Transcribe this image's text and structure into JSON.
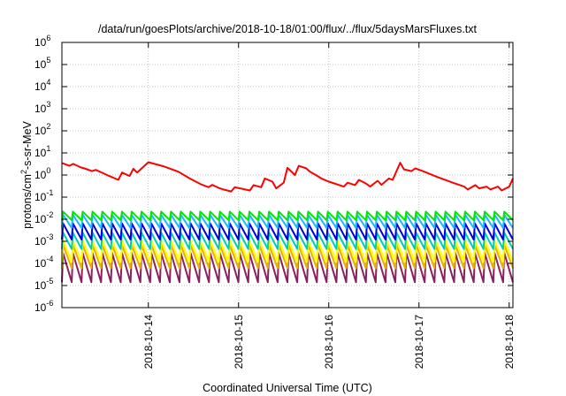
{
  "chart_data": {
    "type": "line",
    "title": "/data/run/goesPlots/archive/2018-10-18/01:00/flux/../flux/5daysMarsFluxes.txt",
    "xlabel": "Coordinated Universal Time (UTC)",
    "ylabel": "protons/cm2-s-sr-MeV",
    "ylabel_parts": {
      "pre": "protons/cm",
      "sup": "2",
      "post": "-s-sr-MeV"
    },
    "y_scale": "log",
    "ylim": [
      1e-06,
      1000000.0
    ],
    "xlim": [
      "2018-10-13T01:00",
      "2018-10-18T01:00"
    ],
    "grid": true,
    "legend": "none",
    "y_ticks": [
      {
        "value": 1e-06,
        "base": "10",
        "exp": "-6"
      },
      {
        "value": 1e-05,
        "base": "10",
        "exp": "-5"
      },
      {
        "value": 0.0001,
        "base": "10",
        "exp": "-4"
      },
      {
        "value": 0.001,
        "base": "10",
        "exp": "-3"
      },
      {
        "value": 0.01,
        "base": "10",
        "exp": "-2"
      },
      {
        "value": 0.1,
        "base": "10",
        "exp": "-1"
      },
      {
        "value": 1,
        "base": "10",
        "exp": "0"
      },
      {
        "value": 10,
        "base": "10",
        "exp": "1"
      },
      {
        "value": 100,
        "base": "10",
        "exp": "2"
      },
      {
        "value": 1000,
        "base": "10",
        "exp": "3"
      },
      {
        "value": 10000,
        "base": "10",
        "exp": "4"
      },
      {
        "value": 100000,
        "base": "10",
        "exp": "5"
      },
      {
        "value": 1000000,
        "base": "10",
        "exp": "6"
      }
    ],
    "x_ticks": [
      {
        "value": "2018-10-14T00:00",
        "label": "2018-10-14"
      },
      {
        "value": "2018-10-15T00:00",
        "label": "2018-10-15"
      },
      {
        "value": "2018-10-16T00:00",
        "label": "2018-10-16"
      },
      {
        "value": "2018-10-17T00:00",
        "label": "2018-10-17"
      },
      {
        "value": "2018-10-18T00:00",
        "label": "2018-10-18"
      }
    ],
    "series": [
      {
        "color": "#ff0000",
        "x": [
          "2018-10-13T01:00",
          "2018-10-13T03:00",
          "2018-10-13T04:00",
          "2018-10-13T06:00",
          "2018-10-13T07:00",
          "2018-10-13T09:00",
          "2018-10-13T10:00",
          "2018-10-13T12:00",
          "2018-10-13T13:00",
          "2018-10-13T16:00",
          "2018-10-13T17:00",
          "2018-10-13T19:00",
          "2018-10-13T20:00",
          "2018-10-13T21:00",
          "2018-10-14T00:00",
          "2018-10-14T04:00",
          "2018-10-14T08:00",
          "2018-10-14T11:00",
          "2018-10-14T14:00",
          "2018-10-14T16:00",
          "2018-10-14T17:00",
          "2018-10-14T19:00",
          "2018-10-14T20:00",
          "2018-10-14T22:00",
          "2018-10-14T23:00",
          "2018-10-15T03:00",
          "2018-10-15T04:00",
          "2018-10-15T06:00",
          "2018-10-15T07:00",
          "2018-10-15T09:00",
          "2018-10-15T10:00",
          "2018-10-15T12:00",
          "2018-10-15T13:00",
          "2018-10-15T15:00",
          "2018-10-15T16:00",
          "2018-10-15T18:00",
          "2018-10-15T19:00",
          "2018-10-15T21:00",
          "2018-10-15T22:00",
          "2018-10-16T00:00",
          "2018-10-16T04:00",
          "2018-10-16T05:00",
          "2018-10-16T07:00",
          "2018-10-16T08:00",
          "2018-10-16T10:00",
          "2018-10-16T11:00",
          "2018-10-16T13:00",
          "2018-10-16T14:00",
          "2018-10-16T16:00",
          "2018-10-16T17:00",
          "2018-10-16T19:00",
          "2018-10-16T20:00",
          "2018-10-16T22:00",
          "2018-10-16T23:00",
          "2018-10-17T01:00",
          "2018-10-17T05:00",
          "2018-10-17T09:00",
          "2018-10-17T12:00",
          "2018-10-17T13:00",
          "2018-10-17T15:00",
          "2018-10-17T16:00",
          "2018-10-17T18:00",
          "2018-10-17T19:00",
          "2018-10-17T21:00",
          "2018-10-17T22:00",
          "2018-10-18T00:00",
          "2018-10-18T01:00"
        ],
        "y": [
          3.5,
          2.6,
          3.2,
          2.2,
          2.0,
          1.5,
          1.7,
          1.2,
          1.0,
          0.6,
          1.3,
          0.9,
          1.9,
          1.3,
          3.8,
          2.5,
          1.4,
          0.7,
          0.38,
          0.28,
          0.36,
          0.25,
          0.22,
          0.18,
          0.28,
          0.2,
          0.35,
          0.28,
          0.7,
          0.5,
          0.25,
          0.45,
          2.1,
          1.0,
          2.6,
          2.0,
          1.4,
          0.9,
          0.7,
          0.5,
          0.3,
          0.45,
          0.35,
          0.6,
          0.4,
          0.3,
          0.55,
          0.36,
          0.7,
          0.6,
          3.6,
          1.8,
          1.5,
          2.0,
          1.5,
          0.8,
          0.45,
          0.3,
          0.22,
          0.35,
          0.25,
          0.3,
          0.22,
          0.3,
          0.2,
          0.3,
          0.7
        ]
      }
    ],
    "channels": [
      {
        "color": "#00e800",
        "peak": 0.022,
        "trough": 0.009
      },
      {
        "color": "#1ab8ff",
        "peak": 0.016,
        "trough": 0.004
      },
      {
        "color": "#0000e0",
        "peak": 0.0065,
        "trough": 0.0012
      },
      {
        "color": "#00ccb0",
        "peak": 0.0025,
        "trough": 0.00045
      },
      {
        "color": "#ffff00",
        "peak": 0.0011,
        "trough": 0.00012
      },
      {
        "color": "#e8b000",
        "peak": 0.0007,
        "trough": 6e-05
      },
      {
        "color": "#8b2060",
        "peak": 0.0003,
        "trough": 1.4e-05
      }
    ],
    "channel_cycles": 46
  }
}
